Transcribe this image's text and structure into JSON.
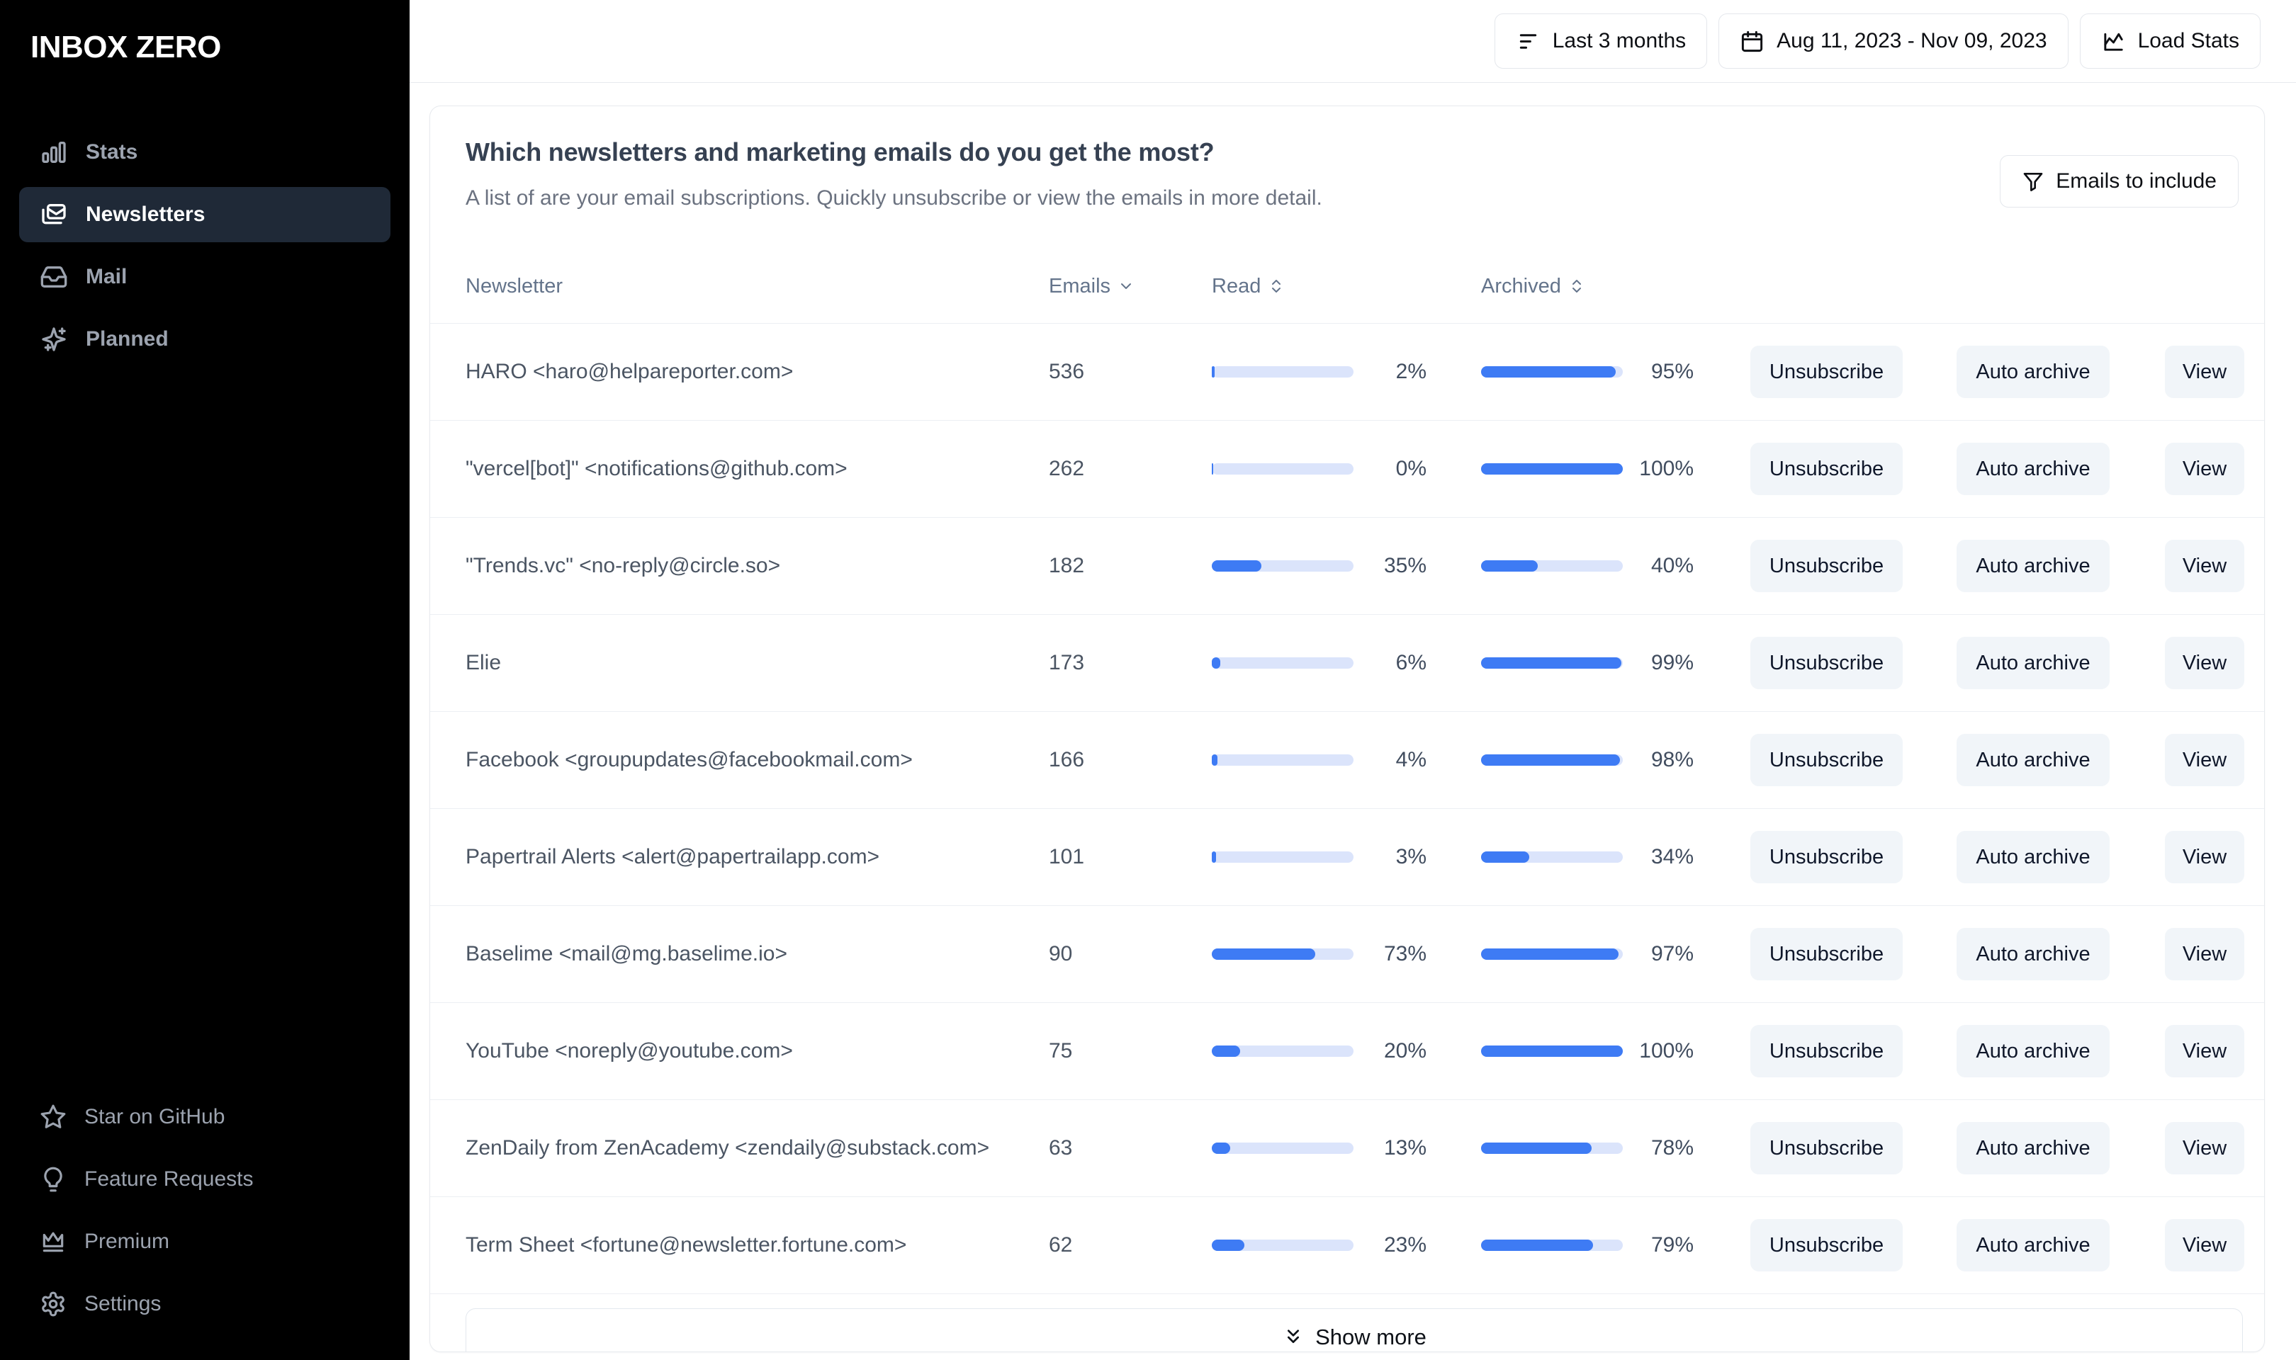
{
  "app": {
    "logo": "INBOX ZERO"
  },
  "sidebar": {
    "items": [
      {
        "label": "Stats",
        "icon": "bar-chart-icon",
        "active": false
      },
      {
        "label": "Newsletters",
        "icon": "newsletters-mail-icon",
        "active": true
      },
      {
        "label": "Mail",
        "icon": "inbox-icon",
        "active": false
      },
      {
        "label": "Planned",
        "icon": "sparkles-icon",
        "active": false
      }
    ],
    "footer_items": [
      {
        "label": "Star on GitHub",
        "icon": "star-icon"
      },
      {
        "label": "Feature Requests",
        "icon": "lightbulb-icon"
      },
      {
        "label": "Premium",
        "icon": "crown-icon"
      },
      {
        "label": "Settings",
        "icon": "gear-icon"
      }
    ]
  },
  "topbar": {
    "range_label": "Last 3 months",
    "range_icon": "filter-lines-icon",
    "date_label": "Aug 11, 2023 - Nov 09, 2023",
    "date_icon": "calendar-icon",
    "load_label": "Load Stats",
    "load_icon": "line-chart-icon"
  },
  "card": {
    "title": "Which newsletters and marketing emails do you get the most?",
    "subtitle": "A list of are your email subscriptions. Quickly unsubscribe or view the emails in more detail.",
    "filter_label": "Emails to include",
    "filter_icon": "funnel-icon",
    "table": {
      "columns": [
        "Newsletter",
        "Emails",
        "Read",
        "Archived"
      ],
      "sort_icons": {
        "emails": "chevron-down-icon",
        "read": "chevrons-up-down-icon",
        "archived": "chevrons-up-down-icon"
      },
      "actions": [
        "Unsubscribe",
        "Auto archive",
        "View"
      ],
      "show_more": "Show more",
      "rows": [
        {
          "name": "HARO <haro@helpareporter.com>",
          "emails": 536,
          "read_pct": 2,
          "archived_pct": 95
        },
        {
          "name": "\"vercel[bot]\" <notifications@github.com>",
          "emails": 262,
          "read_pct": 0,
          "archived_pct": 100
        },
        {
          "name": "\"Trends.vc\" <no-reply@circle.so>",
          "emails": 182,
          "read_pct": 35,
          "archived_pct": 40
        },
        {
          "name": "Elie",
          "emails": 173,
          "read_pct": 6,
          "archived_pct": 99
        },
        {
          "name": "Facebook <groupupdates@facebookmail.com>",
          "emails": 166,
          "read_pct": 4,
          "archived_pct": 98
        },
        {
          "name": "Papertrail Alerts <alert@papertrailapp.com>",
          "emails": 101,
          "read_pct": 3,
          "archived_pct": 34
        },
        {
          "name": "Baselime <mail@mg.baselime.io>",
          "emails": 90,
          "read_pct": 73,
          "archived_pct": 97
        },
        {
          "name": "YouTube <noreply@youtube.com>",
          "emails": 75,
          "read_pct": 20,
          "archived_pct": 100
        },
        {
          "name": "ZenDaily from ZenAcademy <zendaily@substack.com>",
          "emails": 63,
          "read_pct": 13,
          "archived_pct": 78
        },
        {
          "name": "Term Sheet <fortune@newsletter.fortune.com>",
          "emails": 62,
          "read_pct": 23,
          "archived_pct": 79
        }
      ]
    }
  },
  "colors": {
    "accent_blue": "#3e7bf4",
    "bar_track": "#dbe4fb",
    "sidebar_bg": "#000000",
    "sidebar_active_bg": "#1f2937",
    "row_button_bg": "#f1f5f9",
    "card_border": "#e7eaee"
  }
}
